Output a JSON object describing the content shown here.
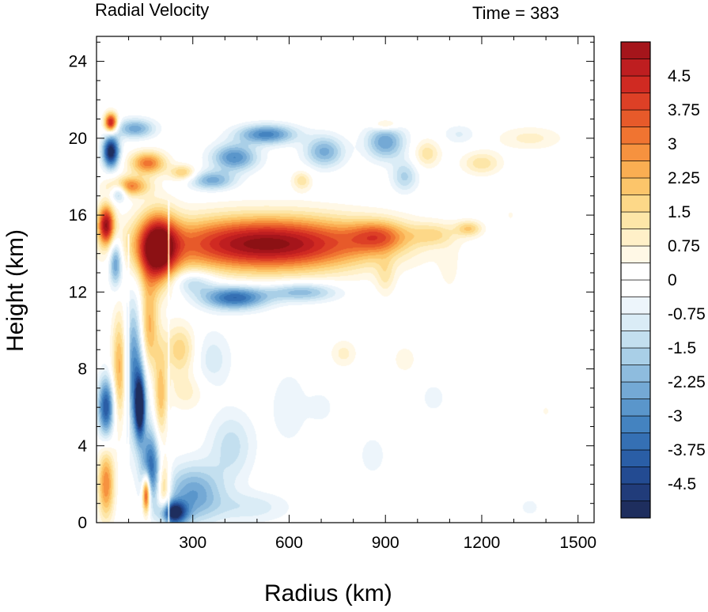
{
  "chart_data": {
    "type": "heatmap",
    "title": "Radial Velocity",
    "subtitle": "Time = 383",
    "xlabel": "Radius (km)",
    "ylabel": "Height (km)",
    "xlim": [
      0,
      1550
    ],
    "ylim": [
      0,
      25.3
    ],
    "xticks": [
      300,
      600,
      900,
      1200,
      1500
    ],
    "yticks": [
      0,
      4,
      8,
      12,
      16,
      20,
      24
    ],
    "colorbar": {
      "range": [
        -5.25,
        5.25
      ],
      "levels": [
        -5.25,
        -4.875,
        -4.5,
        -4.125,
        -3.75,
        -3.375,
        -3,
        -2.625,
        -2.25,
        -1.875,
        -1.5,
        -1.125,
        -0.75,
        -0.375,
        0,
        0.375,
        0.75,
        1.125,
        1.5,
        1.875,
        2.25,
        2.625,
        3,
        3.375,
        3.75,
        4.125,
        4.5,
        4.875,
        5.25
      ],
      "labels": [
        "4.5",
        "3.75",
        "3",
        "2.25",
        "1.5",
        "0.75",
        "0",
        "-0.75",
        "-1.5",
        "-2.25",
        "-3",
        "-3.75",
        "-4.5"
      ],
      "label_values": [
        4.5,
        3.75,
        3,
        2.25,
        1.5,
        0.75,
        0,
        -0.75,
        -1.5,
        -2.25,
        -3,
        -3.75,
        -4.5
      ],
      "colors": [
        "#1e2e5e",
        "#213c7a",
        "#234b92",
        "#2a5ea6",
        "#3570b4",
        "#4483c0",
        "#5a96cb",
        "#74a9d5",
        "#8ebcde",
        "#a9cfe7",
        "#c3dfef",
        "#daecf6",
        "#edf5fb",
        "#ffffff",
        "#ffffff",
        "#fff8e6",
        "#fff0c8",
        "#fde6a8",
        "#fdd888",
        "#fcc56a",
        "#faae52",
        "#f6923f",
        "#f07431",
        "#e75a2a",
        "#dd4026",
        "#d02a22",
        "#be1e20",
        "#a5151b",
        "#8c1114"
      ]
    },
    "features": [
      {
        "r": 530,
        "z": 14.5,
        "sr": 330,
        "sz": 1.4,
        "v": 5.5
      },
      {
        "r": 190,
        "z": 14.2,
        "sr": 60,
        "sz": 1.8,
        "v": 5.5
      },
      {
        "r": 880,
        "z": 14.9,
        "sr": 90,
        "sz": 0.8,
        "v": 2.4
      },
      {
        "r": 1050,
        "z": 15.0,
        "sr": 70,
        "sz": 0.6,
        "v": 1.3
      },
      {
        "r": 1160,
        "z": 15.3,
        "sr": 40,
        "sz": 0.4,
        "v": 1.8
      },
      {
        "r": 430,
        "z": 11.7,
        "sr": 100,
        "sz": 0.6,
        "v": -3.8
      },
      {
        "r": 640,
        "z": 12.0,
        "sr": 110,
        "sz": 0.5,
        "v": -2.2
      },
      {
        "r": 300,
        "z": 12.5,
        "sr": 70,
        "sz": 0.6,
        "v": -1.6
      },
      {
        "r": 45,
        "z": 19.3,
        "sr": 25,
        "sz": 0.8,
        "v": -5.5
      },
      {
        "r": 45,
        "z": 20.8,
        "sr": 20,
        "sz": 0.5,
        "v": 5.0
      },
      {
        "r": 120,
        "z": 20.5,
        "sr": 60,
        "sz": 0.5,
        "v": -2.5
      },
      {
        "r": 160,
        "z": 18.7,
        "sr": 55,
        "sz": 0.6,
        "v": 3.2
      },
      {
        "r": 100,
        "z": 17.5,
        "sr": 60,
        "sz": 0.5,
        "v": 3.2
      },
      {
        "r": 70,
        "z": 17.2,
        "sr": 25,
        "sz": 0.5,
        "v": -2.5
      },
      {
        "r": 430,
        "z": 19.0,
        "sr": 70,
        "sz": 0.7,
        "v": -3.0
      },
      {
        "r": 530,
        "z": 20.2,
        "sr": 90,
        "sz": 0.5,
        "v": -3.2
      },
      {
        "r": 360,
        "z": 17.8,
        "sr": 70,
        "sz": 0.5,
        "v": -2.4
      },
      {
        "r": 270,
        "z": 18.2,
        "sr": 40,
        "sz": 0.4,
        "v": 2.0
      },
      {
        "r": 710,
        "z": 19.3,
        "sr": 60,
        "sz": 0.8,
        "v": -2.4
      },
      {
        "r": 900,
        "z": 19.8,
        "sr": 60,
        "sz": 0.9,
        "v": -2.6
      },
      {
        "r": 960,
        "z": 18.0,
        "sr": 40,
        "sz": 0.8,
        "v": -1.6
      },
      {
        "r": 1030,
        "z": 19.2,
        "sr": 40,
        "sz": 0.7,
        "v": 1.4
      },
      {
        "r": 1200,
        "z": 18.7,
        "sr": 60,
        "sz": 0.6,
        "v": 1.4
      },
      {
        "r": 1350,
        "z": 20.0,
        "sr": 100,
        "sz": 0.6,
        "v": 0.9
      },
      {
        "r": 1130,
        "z": 20.2,
        "sr": 50,
        "sz": 0.5,
        "v": -0.8
      },
      {
        "r": 640,
        "z": 17.8,
        "sr": 30,
        "sz": 0.5,
        "v": 1.4
      },
      {
        "r": 900,
        "z": 20.7,
        "sr": 40,
        "sz": 0.3,
        "v": 1.6
      },
      {
        "r": 30,
        "z": 15.5,
        "sr": 25,
        "sz": 1.0,
        "v": 5.0
      },
      {
        "r": 60,
        "z": 13.5,
        "sr": 20,
        "sz": 1.2,
        "v": -3.0
      },
      {
        "r": 75,
        "z": 8.0,
        "sr": 25,
        "sz": 3.0,
        "v": 3.2
      },
      {
        "r": 30,
        "z": 6.0,
        "sr": 25,
        "sz": 1.5,
        "v": -4.2
      },
      {
        "r": 30,
        "z": 2.0,
        "sr": 25,
        "sz": 1.8,
        "v": 3.0
      },
      {
        "r": 120,
        "z": 8.0,
        "sr": 40,
        "sz": 3.5,
        "v": -3.5
      },
      {
        "r": 135,
        "z": 6.0,
        "sr": 15,
        "sz": 1.5,
        "v": -5.0
      },
      {
        "r": 160,
        "z": 10.0,
        "sr": 30,
        "sz": 2.5,
        "v": 3.0
      },
      {
        "r": 170,
        "z": 3.0,
        "sr": 30,
        "sz": 1.8,
        "v": -3.5
      },
      {
        "r": 155,
        "z": 1.5,
        "sr": 12,
        "sz": 1.0,
        "v": 4.8
      },
      {
        "r": 200,
        "z": 6.5,
        "sr": 20,
        "sz": 2.5,
        "v": 2.0
      },
      {
        "r": 210,
        "z": 1.8,
        "sr": 20,
        "sz": 1.5,
        "v": 2.5
      },
      {
        "r": 260,
        "z": 9.0,
        "sr": 50,
        "sz": 1.3,
        "v": 1.8
      },
      {
        "r": 280,
        "z": 6.8,
        "sr": 60,
        "sz": 1.0,
        "v": 0.9
      },
      {
        "r": 300,
        "z": 1.5,
        "sr": 90,
        "sz": 1.5,
        "v": -2.6
      },
      {
        "r": 240,
        "z": 0.5,
        "sr": 40,
        "sz": 0.6,
        "v": -5.0
      },
      {
        "r": 420,
        "z": 4.0,
        "sr": 70,
        "sz": 1.8,
        "v": -1.3
      },
      {
        "r": 480,
        "z": 0.8,
        "sr": 120,
        "sz": 0.8,
        "v": -1.0
      },
      {
        "r": 360,
        "z": 8.5,
        "sr": 60,
        "sz": 1.5,
        "v": -1.0
      },
      {
        "r": 600,
        "z": 6.0,
        "sr": 60,
        "sz": 2.0,
        "v": -0.7
      },
      {
        "r": 770,
        "z": 8.8,
        "sr": 40,
        "sz": 0.7,
        "v": 0.9
      },
      {
        "r": 900,
        "z": 12.8,
        "sr": 30,
        "sz": 1.0,
        "v": 1.0
      },
      {
        "r": 1100,
        "z": 13.0,
        "sr": 40,
        "sz": 1.5,
        "v": 0.4
      },
      {
        "r": 960,
        "z": 8.5,
        "sr": 40,
        "sz": 0.8,
        "v": 0.6
      },
      {
        "r": 860,
        "z": 3.5,
        "sr": 40,
        "sz": 1.0,
        "v": -0.7
      },
      {
        "r": 1050,
        "z": 6.5,
        "sr": 40,
        "sz": 0.8,
        "v": -0.6
      },
      {
        "r": 1350,
        "z": 0.8,
        "sr": 40,
        "sz": 0.6,
        "v": -0.5
      },
      {
        "r": 1290,
        "z": 16.0,
        "sr": 20,
        "sz": 0.5,
        "v": 0.4
      },
      {
        "r": 1400,
        "z": 5.8,
        "sr": 30,
        "sz": 0.6,
        "v": 0.4
      },
      {
        "r": 700,
        "z": 6.0,
        "sr": 40,
        "sz": 0.8,
        "v": -0.6
      }
    ],
    "discontinuities": [
      {
        "r": 225,
        "z0": 0,
        "z1": 16.8
      },
      {
        "r": 100,
        "z0": 0,
        "z1": 15.0
      }
    ]
  }
}
